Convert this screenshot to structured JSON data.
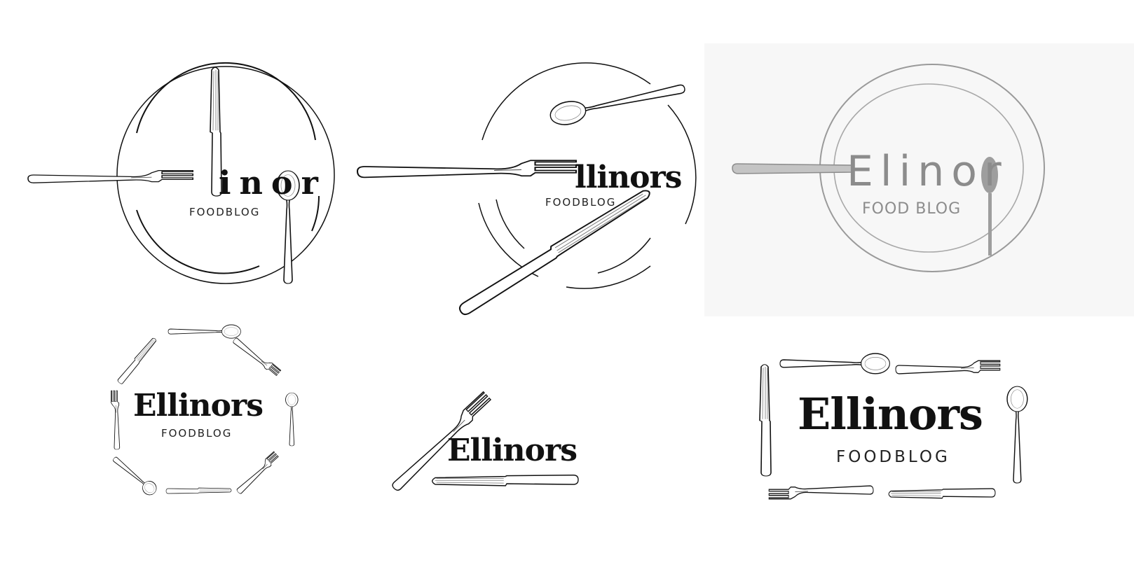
{
  "logos": [
    {
      "id": "plate-knife-spoon",
      "brand": "inor",
      "brand_leading": "l",
      "subtitle": "FOODBLOG"
    },
    {
      "id": "plate-fork-knife",
      "brand": "llinors",
      "subtitle": "FOODBLOG"
    },
    {
      "id": "pencil-sketch",
      "brand": "Elinor",
      "subtitle": "FOOD BLOG"
    },
    {
      "id": "cutlery-ring",
      "brand": "Ellinors",
      "subtitle": "FOODBLOG"
    },
    {
      "id": "fork-knife-corner",
      "brand": "Ellinors"
    },
    {
      "id": "cutlery-frame",
      "brand": "Ellinors",
      "subtitle": "FOODBLOG"
    }
  ],
  "colors": {
    "ink": "#111111",
    "pencil": "#8c8c8c",
    "sketch_paper": "#f7f7f7"
  },
  "icons": [
    "fork-icon",
    "knife-icon",
    "spoon-icon",
    "plate-icon"
  ]
}
